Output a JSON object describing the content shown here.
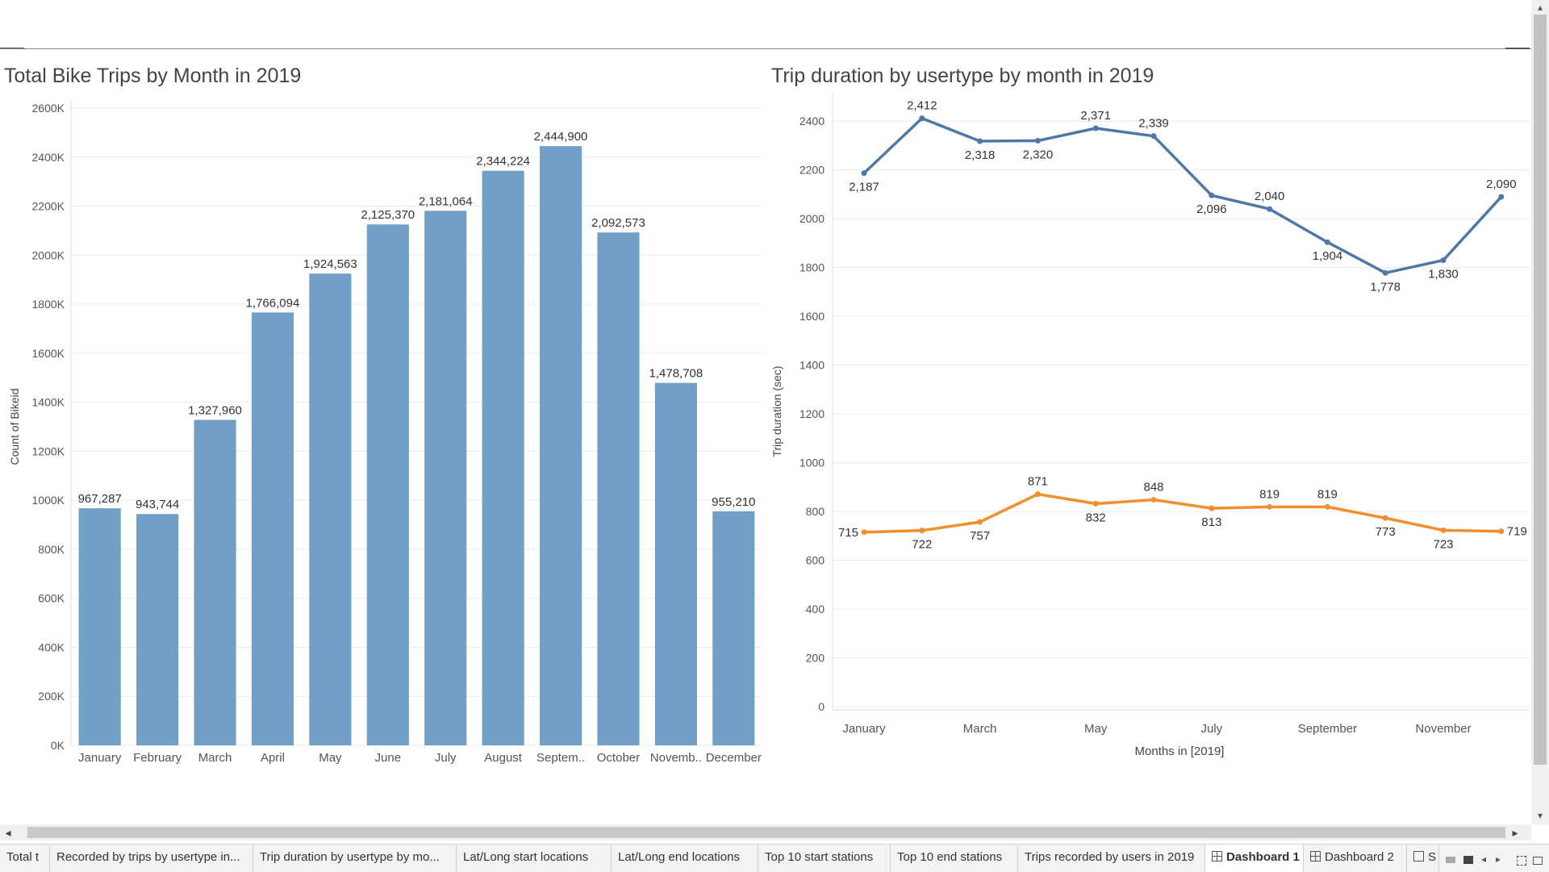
{
  "dashboard": {
    "left_title": "Total Bike Trips by Month in 2019",
    "right_title": "Trip duration by usertype by month in 2019"
  },
  "colors": {
    "bar": "#729fc6",
    "series1": "#4e79a7",
    "series2": "#f28e2b",
    "grid": "#ececec",
    "text": "#555555"
  },
  "chart_data": [
    {
      "type": "bar",
      "title": "Total Bike Trips by Month in 2019",
      "xlabel": "",
      "ylabel": "Count of Bikeid",
      "ylim": [
        0,
        2600000
      ],
      "yticks": [
        "0K",
        "200K",
        "400K",
        "600K",
        "800K",
        "1000K",
        "1200K",
        "1400K",
        "1600K",
        "1800K",
        "2000K",
        "2200K",
        "2400K",
        "2600K"
      ],
      "categories": [
        "January",
        "February",
        "March",
        "April",
        "May",
        "June",
        "July",
        "August",
        "Septem..",
        "October",
        "Novemb..",
        "December"
      ],
      "values": [
        967287,
        943744,
        1327960,
        1766094,
        1924563,
        2125370,
        2181064,
        2344224,
        2444900,
        2092573,
        1478708,
        955210
      ],
      "data_labels": [
        "967,287",
        "943,744",
        "1,327,960",
        "1,766,094",
        "1,924,563",
        "2,125,370",
        "2,181,064",
        "2,344,224",
        "2,444,900",
        "2,092,573",
        "1,478,708",
        "955,210"
      ]
    },
    {
      "type": "line",
      "title": "Trip duration by usertype by month in 2019",
      "xlabel": "Months in [2019]",
      "ylabel": "Trip duration (sec)",
      "ylim": [
        0,
        2500
      ],
      "yticks": [
        "0",
        "200",
        "400",
        "600",
        "800",
        "1000",
        "1200",
        "1400",
        "1600",
        "1800",
        "2000",
        "2200",
        "2400"
      ],
      "x": [
        1,
        2,
        3,
        4,
        5,
        6,
        7,
        8,
        9,
        10,
        11,
        12
      ],
      "xtick_positions": [
        1,
        3,
        5,
        7,
        9,
        11
      ],
      "xtick_labels": [
        "January",
        "March",
        "May",
        "July",
        "September",
        "November"
      ],
      "series": [
        {
          "values": [
            2187,
            2412,
            2318,
            2320,
            2371,
            2339,
            2096,
            2040,
            1904,
            1778,
            1830,
            2090
          ],
          "labels": [
            "2,187",
            "2,412",
            "2,318",
            "2,320",
            "2,371",
            "2,339",
            "2,096",
            "2,040",
            "1,904",
            "1,778",
            "1,830",
            "2,090"
          ]
        },
        {
          "values": [
            715,
            722,
            757,
            871,
            832,
            848,
            813,
            819,
            819,
            773,
            723,
            719
          ],
          "labels": [
            "715",
            "722",
            "757",
            "871",
            "832",
            "848",
            "813",
            "819",
            "819",
            "773",
            "723",
            "719"
          ]
        }
      ]
    }
  ],
  "tabs": [
    {
      "label": "Total t",
      "icon": ""
    },
    {
      "label": "Recorded by trips by usertype in...",
      "icon": ""
    },
    {
      "label": "Trip duration by usertype by mo...",
      "icon": ""
    },
    {
      "label": "Lat/Long start locations",
      "icon": ""
    },
    {
      "label": "Lat/Long end locations",
      "icon": ""
    },
    {
      "label": "Top 10 start stations",
      "icon": ""
    },
    {
      "label": "Top 10 end stations",
      "icon": ""
    },
    {
      "label": "Trips recorded by users in 2019",
      "icon": ""
    },
    {
      "label": "Dashboard 1",
      "icon": "dashboard-icon",
      "active": true
    },
    {
      "label": "Dashboard 2",
      "icon": "dashboard-icon"
    },
    {
      "label": "S",
      "icon": "story-icon"
    }
  ],
  "icons": {
    "scroll_left": "◂",
    "scroll_right": "▸",
    "scroll_up": "▴",
    "scroll_down": "▾"
  }
}
